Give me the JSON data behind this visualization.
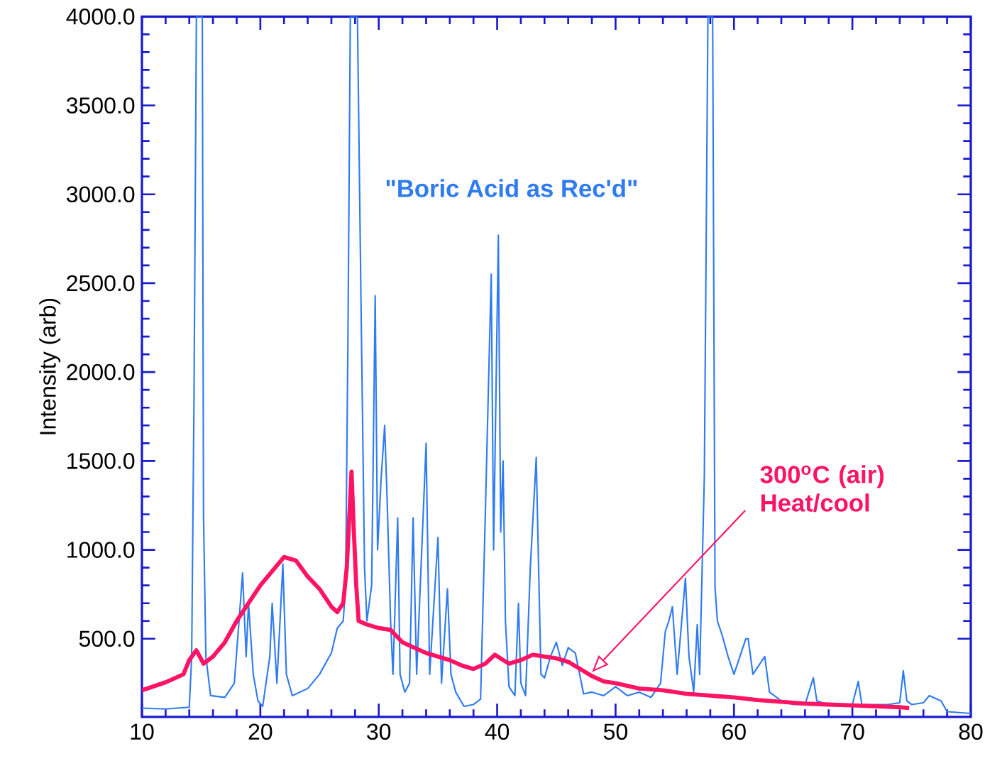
{
  "chart_data": {
    "type": "line",
    "ylabel": "Intensity (arb)",
    "xlim": [
      10,
      80
    ],
    "ylim": [
      60,
      4000
    ],
    "xticks": [
      10,
      20,
      30,
      40,
      50,
      60,
      70,
      80
    ],
    "yticks": [
      {
        "value": 500,
        "label": "500.0"
      },
      {
        "value": 1000,
        "label": "1000.0"
      },
      {
        "value": 1500,
        "label": "1500.0"
      },
      {
        "value": 2000,
        "label": "2000.0"
      },
      {
        "value": 2500,
        "label": "2500.0"
      },
      {
        "value": 3000,
        "label": "3000.0"
      },
      {
        "value": 3500,
        "label": "3500.0"
      },
      {
        "value": 4000,
        "label": "4000.0"
      }
    ],
    "series": [
      {
        "name": "\"Boric Acid as Rec'd\"",
        "color": "#2f7bf0",
        "x": [
          10,
          12,
          14,
          14.2,
          14.4,
          14.6,
          15.1,
          15.2,
          15.4,
          15.8,
          17,
          17.8,
          18.2,
          18.5,
          18.8,
          19.0,
          19.4,
          19.8,
          20.2,
          20.8,
          21.0,
          21.4,
          21.9,
          22.2,
          22.7,
          24,
          25,
          26,
          26.5,
          27.0,
          27.2,
          27.4,
          27.6,
          28.2,
          28.5,
          28.8,
          29,
          29.4,
          29.7,
          29.9,
          30.2,
          30.5,
          30.7,
          31.0,
          31.2,
          31.6,
          31.8,
          32.2,
          32.6,
          32.9,
          33.2,
          34.0,
          34.3,
          35.0,
          35.3,
          35.8,
          36.1,
          36.5,
          37.2,
          38.0,
          38.6,
          39.0,
          39.5,
          39.7,
          40.1,
          40.3,
          40.5,
          40.7,
          41.0,
          41.5,
          41.8,
          42.0,
          42.4,
          42.8,
          43.3,
          43.5,
          43.7,
          44,
          44.5,
          45,
          45.5,
          46,
          46.6,
          47.3,
          48,
          49,
          50,
          51,
          52,
          53,
          53.8,
          54.2,
          54.5,
          54.8,
          55.2,
          55.9,
          56.2,
          56.6,
          56.9,
          57.1,
          57.5,
          57.8,
          58.2,
          58.4,
          58.6,
          59,
          59.5,
          60,
          60.5,
          61,
          61.2,
          61.6,
          62.6,
          63,
          64,
          65,
          66,
          66.7,
          67,
          68,
          69,
          70,
          70.5,
          70.8,
          72,
          73,
          74,
          74.3,
          74.6,
          75,
          76,
          76.5,
          77.5,
          78,
          80
        ],
        "values": [
          110,
          105,
          115,
          400,
          1870,
          4000,
          4000,
          1200,
          400,
          180,
          170,
          250,
          600,
          870,
          400,
          700,
          300,
          150,
          120,
          400,
          700,
          250,
          920,
          300,
          180,
          220,
          300,
          420,
          560,
          600,
          800,
          2200,
          4000,
          4000,
          2400,
          900,
          600,
          800,
          2430,
          1000,
          1400,
          1700,
          1300,
          600,
          300,
          1180,
          300,
          200,
          250,
          1180,
          300,
          1600,
          300,
          1070,
          250,
          780,
          300,
          200,
          120,
          130,
          160,
          1200,
          2550,
          1000,
          2770,
          1100,
          1500,
          600,
          230,
          180,
          700,
          250,
          180,
          900,
          1520,
          900,
          300,
          280,
          400,
          480,
          350,
          450,
          420,
          190,
          200,
          180,
          230,
          180,
          200,
          170,
          250,
          540,
          600,
          680,
          300,
          840,
          400,
          200,
          580,
          300,
          1420,
          4000,
          4000,
          790,
          600,
          520,
          400,
          300,
          400,
          500,
          500,
          300,
          400,
          200,
          150,
          130,
          130,
          280,
          150,
          130,
          120,
          130,
          260,
          130,
          130,
          130,
          140,
          320,
          150,
          130,
          140,
          180,
          150,
          90,
          80
        ]
      },
      {
        "name": "300$^{o}$C (air) Heat/cool",
        "color": "#ff1464",
        "x": [
          10,
          12,
          13.5,
          14.0,
          14.6,
          15.2,
          16,
          17,
          18,
          19,
          20,
          21,
          22,
          23,
          24,
          25,
          26,
          26.5,
          27.0,
          27.3,
          27.7,
          27.9,
          28.1,
          28.3,
          29,
          30,
          31,
          32,
          33,
          34,
          35,
          36,
          37,
          38,
          39,
          39.8,
          40.5,
          41,
          42,
          43,
          44,
          45,
          46,
          47,
          48,
          49,
          50,
          52,
          54,
          56,
          58,
          60,
          62,
          64,
          66,
          68,
          70,
          72,
          74,
          74.8
        ],
        "values": [
          210,
          255,
          300,
          380,
          435,
          360,
          400,
          480,
          600,
          700,
          800,
          880,
          960,
          940,
          850,
          780,
          680,
          650,
          700,
          900,
          1440,
          1100,
          800,
          600,
          580,
          560,
          550,
          480,
          450,
          420,
          400,
          380,
          350,
          330,
          360,
          410,
          380,
          360,
          380,
          410,
          400,
          390,
          370,
          330,
          290,
          260,
          250,
          220,
          210,
          190,
          180,
          170,
          155,
          145,
          135,
          130,
          125,
          120,
          115,
          110
        ]
      }
    ]
  }
}
